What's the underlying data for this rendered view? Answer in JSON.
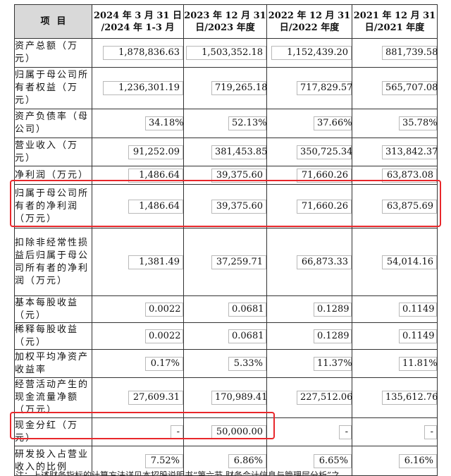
{
  "headers": {
    "item": "项目",
    "col1_l1": "2024 年 3 月 31 日",
    "col1_l2": "/2024 年 1-3 月",
    "col2_l1": "2023 年 12 月 31",
    "col2_l2": "日/2023 年度",
    "col3_l1": "2022 年 12 月 31",
    "col3_l2": "日/2022 年度",
    "col4_l1": "2021 年 12 月 31",
    "col4_l2": "日/2021 年度"
  },
  "rows": [
    {
      "label": "资产总额（万元）",
      "values": [
        "1,878,836.63",
        "1,503,352.18",
        "1,152,439.20",
        "881,739.58"
      ]
    },
    {
      "label": "归属于母公司所有者权益（万元）",
      "values": [
        "1,236,301.19",
        "719,265.18",
        "717,829.57",
        "565,707.08"
      ]
    },
    {
      "label": "资产负债率（母公司）",
      "values": [
        "34.18%",
        "52.13%",
        "37.66%",
        "35.78%"
      ]
    },
    {
      "label": "营业收入（万元）",
      "values": [
        "91,252.09",
        "381,453.85",
        "350,725.34",
        "313,842.37"
      ]
    },
    {
      "label": "净利润（万元）",
      "values": [
        "1,486.64",
        "39,375.60",
        "71,660.26",
        "63,873.08"
      ]
    },
    {
      "label": "归属于母公司所有者的净利润（万元）",
      "values": [
        "1,486.64",
        "39,375.60",
        "71,660.26",
        "63,875.69"
      ]
    },
    {
      "label": "扣除非经常性损益后归属于母公司所有者的净利润（万元）",
      "values": [
        "1,381.49",
        "37,259.71",
        "66,873.33",
        "54,014.16"
      ]
    },
    {
      "label": "基本每股收益（元）",
      "values": [
        "0.0022",
        "0.0681",
        "0.1289",
        "0.1149"
      ]
    },
    {
      "label": "稀释每股收益（元）",
      "values": [
        "0.0022",
        "0.0681",
        "0.1289",
        "0.1149"
      ]
    },
    {
      "label": "加权平均净资产收益率",
      "values": [
        "0.17%",
        "5.33%",
        "11.37%",
        "11.81%"
      ]
    },
    {
      "label": "经营活动产生的现金流量净额（万元）",
      "values": [
        "27,609.31",
        "170,989.41",
        "227,512.06",
        "135,612.76"
      ]
    },
    {
      "label": "现金分红（万元）",
      "values": [
        "-",
        "50,000.00",
        "-",
        "-"
      ]
    },
    {
      "label": "研发投入占营业收入的比例",
      "values": [
        "7.52%",
        "6.86%",
        "6.65%",
        "6.16%"
      ]
    }
  ],
  "footnote": "注：上述财务指标的计算方法详见本招股说明书“第六节 财务会计信息与管理层分析”之",
  "highlight_color": "#e8272b",
  "header_bg": "#d9d9d9"
}
